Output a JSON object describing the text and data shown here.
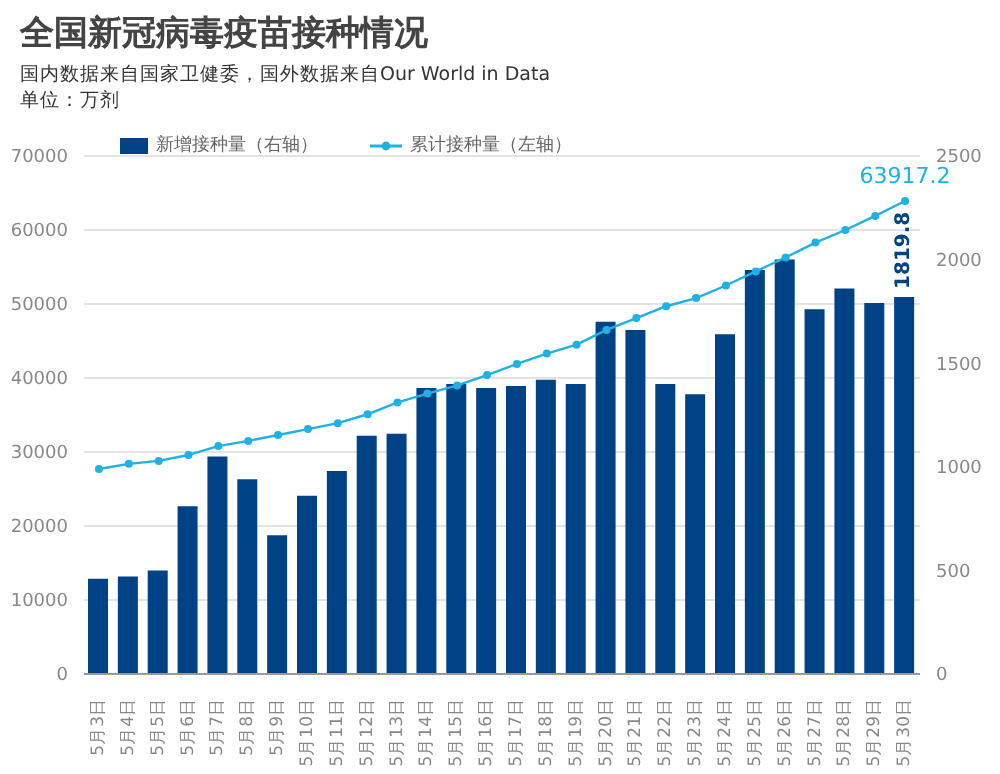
{
  "chart_data": {
    "type": "bar",
    "title": "全国新冠病毒疫苗接种情况",
    "subtitle": "国内数据来自国家卫健委，国外数据来自Our World in Data",
    "annotations": [
      "单位：万剂"
    ],
    "categories": [
      "5月3日",
      "5月4日",
      "5月5日",
      "5月6日",
      "5月7日",
      "5月8日",
      "5月9日",
      "5月10日",
      "5月11日",
      "5月12日",
      "5月13日",
      "5月14日",
      "5月15日",
      "5月16日",
      "5月17日",
      "5月18日",
      "5月19日",
      "5月20日",
      "5月21日",
      "5月22日",
      "5月23日",
      "5月24日",
      "5月25日",
      "5月26日",
      "5月27日",
      "5月28日",
      "5月29日",
      "5月30日"
    ],
    "series": [
      {
        "name": "新增接种量（右轴）",
        "axis": "y2",
        "color": "#004286",
        "values": [
          460,
          470,
          500,
          810,
          1050,
          940,
          670,
          860,
          980,
          1150,
          1160,
          1380,
          1400,
          1380,
          1390,
          1420,
          1400,
          1700,
          1660,
          1400,
          1350,
          1640,
          1950,
          2000,
          1760,
          1860,
          1790,
          1819.8
        ],
        "value_labels": [
          null,
          null,
          null,
          null,
          null,
          null,
          null,
          null,
          null,
          null,
          null,
          null,
          null,
          null,
          null,
          null,
          null,
          null,
          null,
          null,
          null,
          null,
          null,
          null,
          null,
          null,
          null,
          "1819.8"
        ]
      },
      {
        "name": "累计接种量（左轴）",
        "type": "line",
        "color": "#1fb1e6",
        "values": [
          27700,
          28400,
          28800,
          29600,
          30800,
          31500,
          32300,
          33100,
          33900,
          35100,
          36700,
          37900,
          39000,
          40400,
          41900,
          43300,
          44500,
          46500,
          48100,
          49700,
          50800,
          52500,
          54400,
          56300,
          58300,
          60000,
          61900,
          63917.2
        ],
        "value_labels": [
          null,
          null,
          null,
          null,
          null,
          null,
          null,
          null,
          null,
          null,
          null,
          null,
          null,
          null,
          null,
          null,
          null,
          null,
          null,
          null,
          null,
          null,
          null,
          null,
          null,
          null,
          null,
          "63917.2"
        ]
      }
    ],
    "ylim": [
      0,
      70000
    ],
    "yticks": [
      0,
      10000,
      20000,
      30000,
      40000,
      50000,
      60000,
      70000
    ],
    "y2lim": [
      0,
      2500
    ],
    "y2ticks": [
      0,
      500,
      1000,
      1500,
      2000,
      2500
    ],
    "grid": "y",
    "legend": "top left",
    "marker": "circle"
  }
}
